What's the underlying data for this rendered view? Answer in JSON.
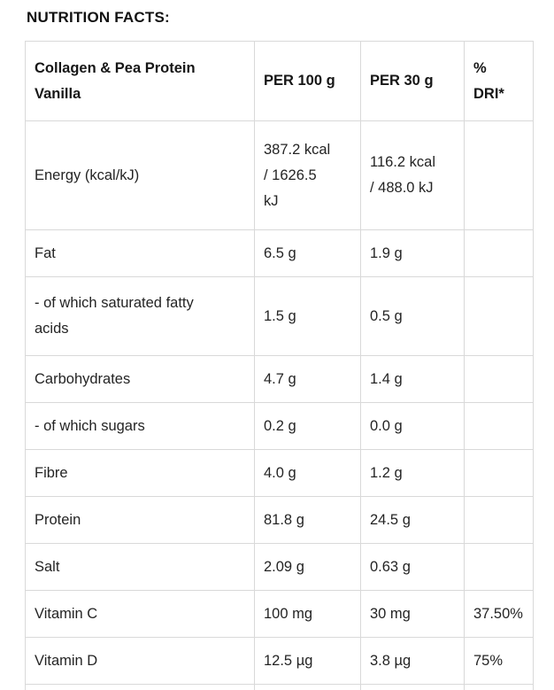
{
  "page": {
    "title": "NUTRITION FACTS:"
  },
  "colors": {
    "background": "#ffffff",
    "border": "#d9d9d9",
    "heading_text": "#121212",
    "body_text": "#242424"
  },
  "table": {
    "header": {
      "product": "Collagen & Pea Protein\nVanilla",
      "per_100g": "PER 100 g",
      "per_30g": "PER 30 g",
      "dri": "%\nDRI*"
    },
    "rows": [
      {
        "label": "Energy (kcal/kJ)",
        "per_100g": "387.2 kcal\n/ 1626.5\nkJ",
        "per_30g": "116.2 kcal\n/ 488.0 kJ",
        "dri": ""
      },
      {
        "label": "Fat",
        "per_100g": "6.5 g",
        "per_30g": "1.9 g",
        "dri": ""
      },
      {
        "label": "- of which saturated fatty\nacids",
        "per_100g": "1.5 g",
        "per_30g": "0.5 g",
        "dri": ""
      },
      {
        "label": "Carbohydrates",
        "per_100g": "4.7 g",
        "per_30g": "1.4 g",
        "dri": ""
      },
      {
        "label": "- of which sugars",
        "per_100g": "0.2 g",
        "per_30g": "0.0 g",
        "dri": ""
      },
      {
        "label": "Fibre",
        "per_100g": "4.0 g",
        "per_30g": "1.2 g",
        "dri": ""
      },
      {
        "label": "Protein",
        "per_100g": "81.8 g",
        "per_30g": "24.5 g",
        "dri": ""
      },
      {
        "label": "Salt",
        "per_100g": "2.09 g",
        "per_30g": "0.63 g",
        "dri": ""
      },
      {
        "label": "Vitamin C",
        "per_100g": "100 mg",
        "per_30g": "30 mg",
        "dri": "37.50%"
      },
      {
        "label": "Vitamin D",
        "per_100g": "12.5 µg",
        "per_30g": "3.8 µg",
        "dri": "75%"
      }
    ]
  }
}
